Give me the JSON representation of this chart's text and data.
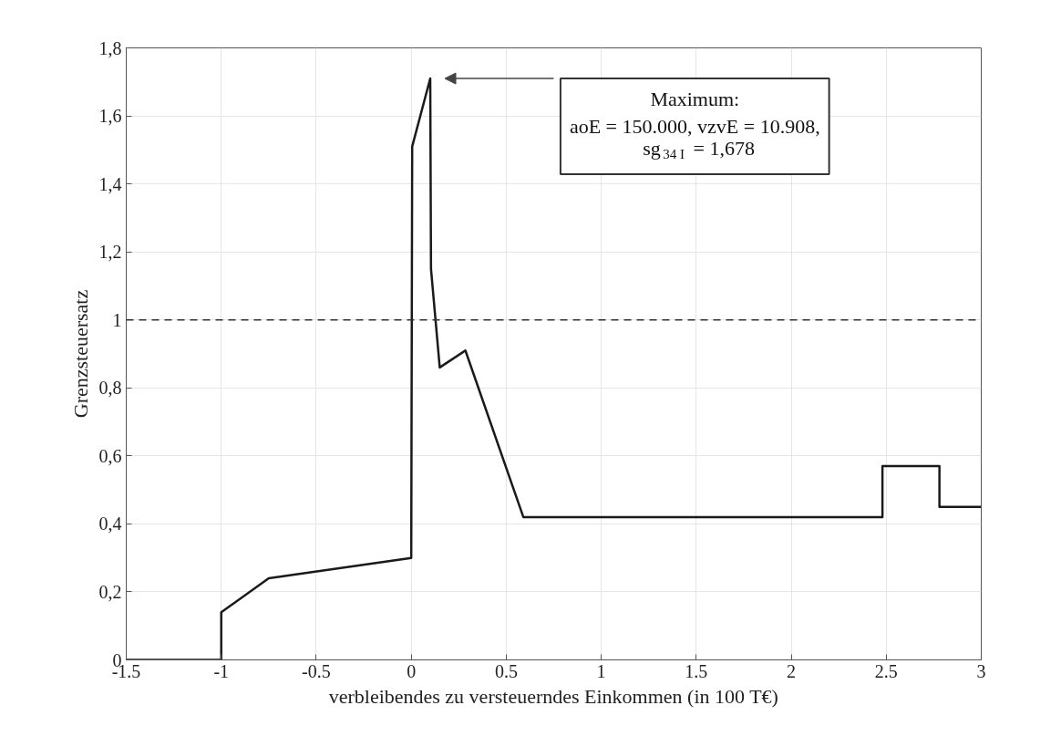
{
  "chart_data": {
    "type": "line",
    "xlabel": "verbleibendes zu versteuerndes Einkommen (in 100 T€)",
    "ylabel": "Grenzsteuersatz",
    "x": [
      -1.5,
      -1.0,
      -1.0,
      -0.75,
      0.0,
      0.005,
      0.1,
      0.104,
      0.15,
      0.285,
      0.59,
      2.48,
      2.48,
      2.78,
      2.78,
      3.0
    ],
    "series": [
      {
        "color": "#1a1a1a",
        "values": [
          0,
          0,
          0.14,
          0.24,
          0.3,
          1.51,
          1.71,
          1.15,
          0.86,
          0.91,
          0.42,
          0.42,
          0.57,
          0.57,
          0.45,
          0.45
        ]
      }
    ],
    "xlim": [
      -1.5,
      3
    ],
    "xticks": [
      -1.5,
      -1,
      -0.5,
      0,
      0.5,
      1,
      1.5,
      2,
      2.5,
      3
    ],
    "ylim": [
      0,
      1.8
    ],
    "yticks": [
      0,
      {
        "value": 0.2,
        "label": "0,2"
      },
      {
        "value": 0.4,
        "label": "0,4"
      },
      {
        "value": 0.6,
        "label": "0,6"
      },
      {
        "value": 0.8,
        "label": "0,8"
      },
      1,
      {
        "value": 1.2,
        "label": "1,2"
      },
      {
        "value": 1.4,
        "label": "1,4"
      },
      {
        "value": 1.6,
        "label": "1,6"
      },
      {
        "value": 1.8,
        "label": "1,8"
      }
    ],
    "grid": true,
    "marker": "none",
    "line_style": "solid",
    "ref_lines": [
      {
        "axis": "y",
        "value": 1,
        "line_style": "dashed",
        "color": "#333333"
      }
    ],
    "annotations": [
      "Maximum:\naoE = 150.000, vzvE = 10.908,\nsg$_{34 I}$ = 1,678"
    ]
  }
}
